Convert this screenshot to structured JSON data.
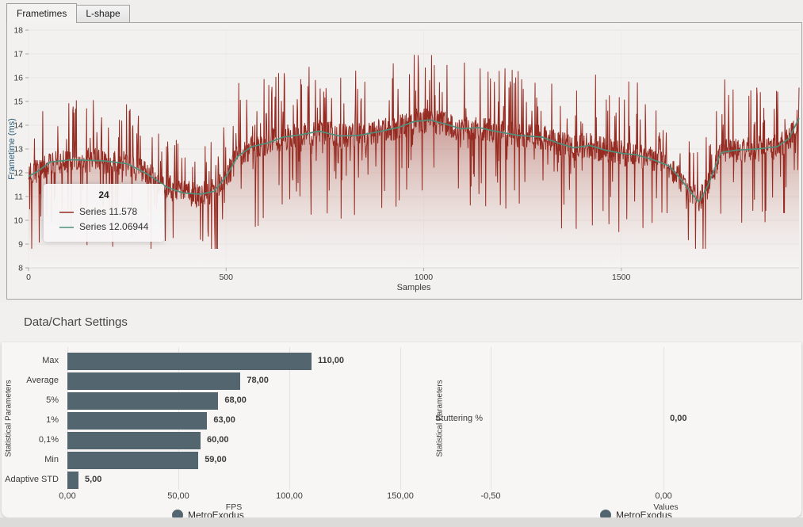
{
  "tabs": [
    {
      "label": "Frametimes",
      "active": true
    },
    {
      "label": "L-shape",
      "active": false
    }
  ],
  "settings_header": "Data/Chart Settings",
  "colors": {
    "raw_series": "#962b22",
    "avg_series": "#4f8f7b",
    "bar": "#53656e",
    "axis_title_blue": "#2b5c77"
  },
  "tooltip": {
    "header": "24",
    "items": [
      {
        "label": "Series 11.578",
        "color": "#962b22"
      },
      {
        "label": "Series 12.06944",
        "color": "#4f8f7b"
      }
    ]
  },
  "chart_data": [
    {
      "id": "frametimes",
      "type": "line",
      "title": "",
      "xlabel": "Samples",
      "ylabel": "Frametime (ms)",
      "xlim": [
        0,
        1950
      ],
      "ylim": [
        8,
        18
      ],
      "xticks": [
        0,
        500,
        1000,
        1500
      ],
      "yticks": [
        8,
        9,
        10,
        11,
        12,
        13,
        14,
        15,
        16,
        17,
        18
      ],
      "grid": true,
      "legend_position": "none",
      "series": [
        {
          "name": "Series",
          "role": "raw-frametimes",
          "color": "#962b22",
          "style": "line-with-gradient-area"
        },
        {
          "name": "Series",
          "role": "moving-average",
          "color": "#4f8f7b",
          "style": "line"
        }
      ],
      "tracker": {
        "sample": 24,
        "raw_value": 11.578,
        "avg_value": 12.06944
      },
      "avg_waypoints": [
        [
          0,
          11.85
        ],
        [
          24,
          12.07
        ],
        [
          55,
          12.45
        ],
        [
          110,
          12.55
        ],
        [
          190,
          12.5
        ],
        [
          250,
          12.38
        ],
        [
          300,
          11.95
        ],
        [
          350,
          11.4
        ],
        [
          390,
          11.15
        ],
        [
          435,
          11.1
        ],
        [
          470,
          11.22
        ],
        [
          500,
          11.85
        ],
        [
          530,
          12.7
        ],
        [
          565,
          13.1
        ],
        [
          605,
          13.25
        ],
        [
          645,
          13.5
        ],
        [
          690,
          13.6
        ],
        [
          735,
          13.75
        ],
        [
          785,
          13.55
        ],
        [
          835,
          13.57
        ],
        [
          885,
          13.72
        ],
        [
          935,
          13.9
        ],
        [
          975,
          14.15
        ],
        [
          1015,
          14.22
        ],
        [
          1055,
          14.05
        ],
        [
          1095,
          13.85
        ],
        [
          1140,
          13.9
        ],
        [
          1180,
          13.75
        ],
        [
          1240,
          13.57
        ],
        [
          1300,
          13.5
        ],
        [
          1340,
          13.25
        ],
        [
          1380,
          13.05
        ],
        [
          1420,
          13.15
        ],
        [
          1460,
          12.95
        ],
        [
          1500,
          12.82
        ],
        [
          1540,
          12.75
        ],
        [
          1580,
          12.55
        ],
        [
          1620,
          12.3
        ],
        [
          1650,
          11.75
        ],
        [
          1680,
          11.1
        ],
        [
          1697,
          10.75
        ],
        [
          1722,
          11.55
        ],
        [
          1752,
          12.85
        ],
        [
          1790,
          12.95
        ],
        [
          1845,
          13.0
        ],
        [
          1895,
          13.1
        ],
        [
          1925,
          13.45
        ],
        [
          1950,
          14.3
        ]
      ],
      "raw_noise": {
        "seed": 20,
        "jitter": 0.55,
        "spike_prob": 0.11,
        "spike_base": 0.85,
        "spike_var": 2.2,
        "dip_prob": 0.09,
        "dip_base": 0.7,
        "dip_var": 2.9,
        "mega_prob": 0.004,
        "clamp": [
          8.8,
          17.25
        ]
      }
    },
    {
      "id": "fps-statistics",
      "type": "bar",
      "orientation": "horizontal",
      "categories": [
        "Max",
        "Average",
        "5%",
        "1%",
        "0,1%",
        "Min",
        "Adaptive STD"
      ],
      "values": [
        110,
        78,
        68,
        63,
        60,
        59,
        5
      ],
      "value_labels": [
        "110,00",
        "78,00",
        "68,00",
        "63,00",
        "60,00",
        "59,00",
        "5,00"
      ],
      "xlabel": "FPS",
      "ylabel": "Statistical Parameters",
      "xlim": [
        0,
        160
      ],
      "xticks": [
        {
          "value": 0,
          "label": "0,00"
        },
        {
          "value": 50,
          "label": "50,00"
        },
        {
          "value": 100,
          "label": "100,00"
        },
        {
          "value": 150,
          "label": "150,00"
        }
      ],
      "grid": true,
      "bar_color": "#53656e",
      "legend": {
        "label": "MetroExodus",
        "position": "bottom"
      }
    },
    {
      "id": "stuttering-percentage",
      "type": "bar",
      "orientation": "horizontal",
      "categories": [
        "Stuttering %"
      ],
      "values": [
        0
      ],
      "value_labels": [
        "0,00"
      ],
      "xlabel": "Values",
      "ylabel": "Statistical Parameters",
      "xlim": [
        -0.65,
        0.4
      ],
      "xticks": [
        {
          "value": -0.5,
          "label": "-0,50"
        },
        {
          "value": 0,
          "label": "0,00"
        }
      ],
      "grid": true,
      "bar_color": "#53656e",
      "legend": {
        "label": "MetroExodus",
        "position": "bottom"
      }
    }
  ]
}
